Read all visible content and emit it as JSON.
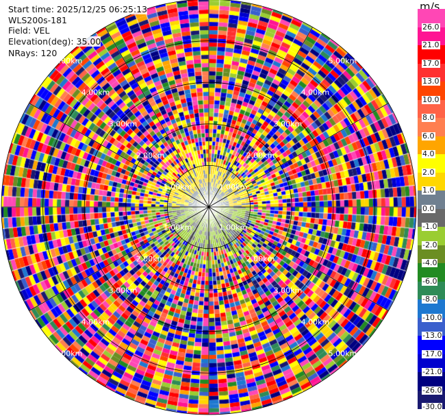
{
  "header": {
    "start_time": "Start time: 2025/12/25 06:25:13",
    "instrument": "WLS200s-181",
    "field": "Field: VEL",
    "elevation": "Elevation(deg): 35.00",
    "nrays": "NRays: 120"
  },
  "chart_data": {
    "type": "heatmap",
    "projection": "polar PPI",
    "field": "VEL",
    "nrays": 120,
    "elevation_deg": 35.0,
    "range_rings_km": [
      "1.00km",
      "2.00km",
      "3.00km",
      "4.00km",
      "5.00km"
    ],
    "max_range_km": 5,
    "azimuth_spokes_deg": [
      0,
      30,
      60,
      90,
      120,
      150,
      180,
      210,
      240,
      270,
      300,
      330
    ],
    "colorbar": {
      "unit": "m/s",
      "tick_labels": [
        "26.0",
        "21.0",
        "17.0",
        "13.0",
        "10.0",
        "8.0",
        "6.0",
        "4.0",
        "2.0",
        "1.0",
        "0.0",
        "-1.0",
        "-2.0",
        "-4.0",
        "-6.0",
        "-8.0",
        "-10.0",
        "-13.0",
        "-17.0",
        "-21.0",
        "-26.0",
        "-30.0"
      ],
      "colors": [
        "#ff47b5",
        "#ff1493",
        "#ff0000",
        "#ff3030",
        "#ff4500",
        "#ff6347",
        "#ff7f50",
        "#ffa500",
        "#ffff00",
        "#ffd700",
        "#708090",
        "#696969",
        "#9acd32",
        "#6b8e23",
        "#228b22",
        "#2e8b57",
        "#1e78d0",
        "#3a5fcd",
        "#0000ff",
        "#0000cd",
        "#000080",
        "#191970"
      ]
    },
    "description_near_range": "within 1 km: positive ~0-2 m/s to north, negative ~0 to -2 m/s to south; beyond noisy"
  }
}
